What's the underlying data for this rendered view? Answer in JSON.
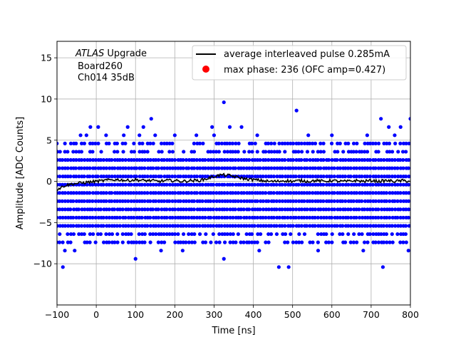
{
  "chart_data": {
    "type": "scatter",
    "title": "",
    "xlabel": "Time [ns]",
    "ylabel": "Amplitude [ADC Counts]",
    "xlim": [
      -100,
      800
    ],
    "ylim": [
      -15,
      17
    ],
    "xticks": [
      -100,
      0,
      100,
      200,
      300,
      400,
      500,
      600,
      700,
      800
    ],
    "yticks": [
      -10,
      -5,
      0,
      5,
      10,
      15
    ],
    "grid": true,
    "legend_position": "top-right",
    "annotation": {
      "line1_italic": "ATLAS",
      "line1_rest": " Upgrade",
      "line2": "Board260",
      "line3": "Ch014 35dB"
    },
    "series": [
      {
        "name": "average interleaved pulse 0.285mA",
        "kind": "line",
        "color": "#000000",
        "x": [
          -100,
          -80,
          -60,
          -40,
          -20,
          0,
          20,
          40,
          60,
          80,
          100,
          120,
          140,
          160,
          180,
          200,
          220,
          240,
          260,
          280,
          300,
          320,
          340,
          360,
          380,
          400,
          420,
          440,
          460,
          480,
          500,
          520,
          540,
          560,
          580,
          600,
          620,
          640,
          660,
          680,
          700,
          720,
          740,
          760,
          780,
          800
        ],
        "y": [
          -1.0,
          -0.5,
          -0.3,
          -0.2,
          -0.1,
          0.0,
          0.1,
          0.2,
          0.2,
          0.1,
          0.2,
          0.1,
          0.1,
          0.0,
          0.1,
          0.1,
          0.0,
          0.1,
          0.1,
          0.3,
          0.6,
          0.8,
          0.7,
          0.5,
          0.3,
          0.2,
          0.1,
          0.0,
          0.0,
          0.1,
          0.0,
          0.1,
          0.0,
          0.1,
          0.0,
          0.1,
          0.0,
          0.0,
          0.1,
          0.0,
          0.1,
          0.0,
          0.1,
          0.0,
          0.1,
          0.0
        ]
      },
      {
        "name": "max phase: 236 (OFC amp=0.427)",
        "kind": "marker",
        "color": "#ff0000"
      },
      {
        "name": "",
        "kind": "scatter",
        "color": "#0000ff",
        "x_range": [
          -100,
          800
        ],
        "x_step": 7,
        "levels": [
          4.6,
          3.6,
          2.6,
          1.6,
          0.6,
          -0.4,
          -1.4,
          -2.4,
          -3.4,
          -4.4,
          -5.4,
          -6.4,
          -7.4
        ],
        "outliers": [
          {
            "x": -85,
            "y": -10.4
          },
          {
            "x": 100,
            "y": -9.4
          },
          {
            "x": 325,
            "y": 9.6
          },
          {
            "x": 510,
            "y": 8.6
          },
          {
            "x": 140,
            "y": 7.6
          },
          {
            "x": 800,
            "y": 7.6
          },
          {
            "x": 725,
            "y": 7.6
          },
          {
            "x": 465,
            "y": -10.4
          },
          {
            "x": 490,
            "y": -10.4
          },
          {
            "x": 730,
            "y": -10.4
          },
          {
            "x": 325,
            "y": -9.4
          },
          {
            "x": -15,
            "y": 6.6
          },
          {
            "x": 5,
            "y": 6.6
          },
          {
            "x": 80,
            "y": 6.6
          },
          {
            "x": 120,
            "y": 6.6
          },
          {
            "x": 295,
            "y": 6.6
          },
          {
            "x": 340,
            "y": 6.6
          },
          {
            "x": 370,
            "y": 6.6
          },
          {
            "x": 745,
            "y": 6.6
          },
          {
            "x": 775,
            "y": 6.6
          },
          {
            "x": -40,
            "y": 5.6
          },
          {
            "x": -25,
            "y": 5.6
          },
          {
            "x": 25,
            "y": 5.6
          },
          {
            "x": 70,
            "y": 5.6
          },
          {
            "x": 110,
            "y": 5.6
          },
          {
            "x": 150,
            "y": 5.6
          },
          {
            "x": 200,
            "y": 5.6
          },
          {
            "x": 255,
            "y": 5.6
          },
          {
            "x": 300,
            "y": 5.6
          },
          {
            "x": 410,
            "y": 5.6
          },
          {
            "x": 540,
            "y": 5.6
          },
          {
            "x": 600,
            "y": 5.6
          },
          {
            "x": 690,
            "y": 5.6
          },
          {
            "x": 760,
            "y": 5.6
          },
          {
            "x": -80,
            "y": -8.4
          },
          {
            "x": -55,
            "y": -8.4
          },
          {
            "x": 165,
            "y": -8.4
          },
          {
            "x": 220,
            "y": -8.4
          },
          {
            "x": 415,
            "y": -8.4
          },
          {
            "x": 565,
            "y": -8.4
          },
          {
            "x": 680,
            "y": -8.4
          },
          {
            "x": 795,
            "y": -8.4
          }
        ]
      }
    ]
  }
}
